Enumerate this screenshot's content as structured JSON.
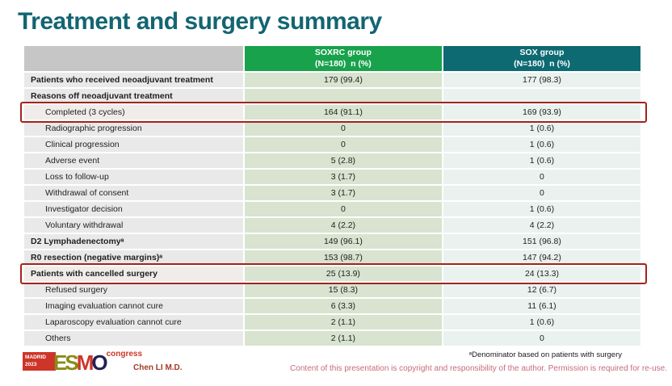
{
  "title": "Treatment and surgery summary",
  "colors": {
    "title_teal": "#136571",
    "soxrc_green": "#18a24c",
    "sox_teal": "#0d6a72",
    "header_gray": "#c6c6c6",
    "label_bg": "#e9e9e9",
    "soxrc_bg": "#d8e3d0",
    "sox_bg": "#eaf2ef",
    "highlight_red": "#a3231d",
    "footer_red": "#cd3529",
    "olive": "#8a8c16",
    "navy": "#232150",
    "presenter_red": "#a63a2b",
    "copyright_pink": "#c76b7b",
    "row_text": "#1f1f1f"
  },
  "table": {
    "columns": [
      {
        "name": "SOXRC group",
        "sub": "(N=180)  n (%)"
      },
      {
        "name": "SOX group",
        "sub": "(N=180)  n (%)"
      }
    ],
    "rows": [
      {
        "label": "Patients who received neoadjuvant treatment",
        "soxrc": "179 (99.4)",
        "sox": "177 (98.3)",
        "bold": true,
        "indent": false,
        "highlighted": false
      },
      {
        "label": "Reasons off neoadjuvant treatment",
        "soxrc": "",
        "sox": "",
        "bold": true,
        "indent": false,
        "highlighted": false
      },
      {
        "label": "Completed (3 cycles)",
        "soxrc": "164 (91.1)",
        "sox": "169 (93.9)",
        "bold": false,
        "indent": true,
        "highlighted": true
      },
      {
        "label": "Radiographic progression",
        "soxrc": "0",
        "sox": "1 (0.6)",
        "bold": false,
        "indent": true,
        "highlighted": false
      },
      {
        "label": "Clinical progression",
        "soxrc": "0",
        "sox": "1 (0.6)",
        "bold": false,
        "indent": true,
        "highlighted": false
      },
      {
        "label": "Adverse event",
        "soxrc": "5 (2.8)",
        "sox": "1 (0.6)",
        "bold": false,
        "indent": true,
        "highlighted": false
      },
      {
        "label": "Loss to follow-up",
        "soxrc": "3 (1.7)",
        "sox": "0",
        "bold": false,
        "indent": true,
        "highlighted": false
      },
      {
        "label": "Withdrawal of consent",
        "soxrc": "3 (1.7)",
        "sox": "0",
        "bold": false,
        "indent": true,
        "highlighted": false
      },
      {
        "label": "Investigator decision",
        "soxrc": "0",
        "sox": "1 (0.6)",
        "bold": false,
        "indent": true,
        "highlighted": false
      },
      {
        "label": "Voluntary withdrawal",
        "soxrc": "4 (2.2)",
        "sox": "4 (2.2)",
        "bold": false,
        "indent": true,
        "highlighted": false
      },
      {
        "label": "D2 Lymphadenectomyᵃ",
        "soxrc": "149 (96.1)",
        "sox": "151 (96.8)",
        "bold": true,
        "indent": false,
        "highlighted": false
      },
      {
        "label": "R0 resection (negative margins)ᵃ",
        "soxrc": "153 (98.7)",
        "sox": "147 (94.2)",
        "bold": true,
        "indent": false,
        "highlighted": false
      },
      {
        "label": "Patients with cancelled surgery",
        "soxrc": "25 (13.9)",
        "sox": "24 (13.3)",
        "bold": true,
        "indent": false,
        "highlighted": true
      },
      {
        "label": "Refused surgery",
        "soxrc": "15 (8.3)",
        "sox": "12 (6.7)",
        "bold": false,
        "indent": true,
        "highlighted": false
      },
      {
        "label": "Imaging evaluation cannot cure",
        "soxrc": "6 (3.3)",
        "sox": "11 (6.1)",
        "bold": false,
        "indent": true,
        "highlighted": false
      },
      {
        "label": "Laparoscopy evaluation cannot cure",
        "soxrc": "2 (1.1)",
        "sox": "1 (0.6)",
        "bold": false,
        "indent": true,
        "highlighted": false
      },
      {
        "label": "Others",
        "soxrc": "2 (1.1)",
        "sox": "0",
        "bold": false,
        "indent": true,
        "highlighted": false
      }
    ]
  },
  "footer": {
    "logo": {
      "city": "MADRID",
      "year": "2023",
      "letters": [
        "E",
        "S",
        "M",
        "O"
      ],
      "congress": "congress"
    },
    "presenter": "Chen LI M.D.",
    "footnote": "ᵃDenominator based on patients with surgery",
    "copyright": "Content of this presentation is copyright and responsibility of the author. Permission is required for re-use."
  }
}
